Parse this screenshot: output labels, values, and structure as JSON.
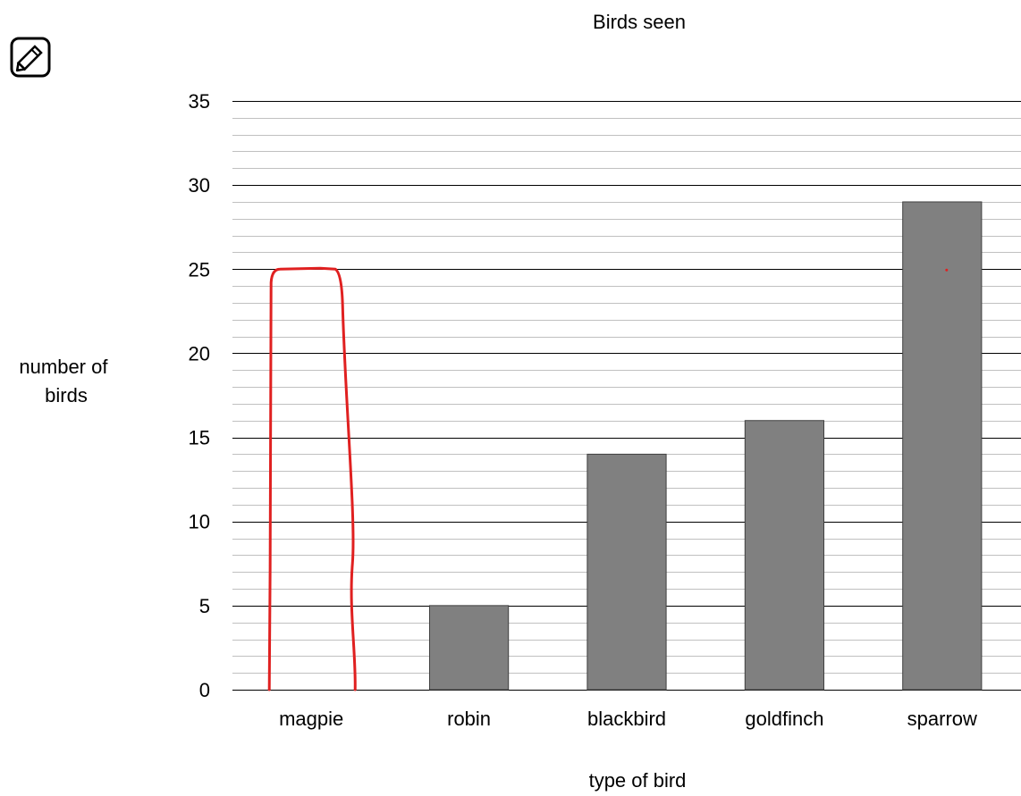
{
  "toolbar": {
    "edit_icon": "pencil-icon"
  },
  "chart_data": {
    "type": "bar",
    "title": "Birds seen",
    "xlabel": "type of bird",
    "ylabel_lines": [
      "number of",
      "birds"
    ],
    "categories": [
      "magpie",
      "robin",
      "blackbird",
      "goldfinch",
      "sparrow"
    ],
    "values": [
      null,
      5,
      14,
      16,
      29
    ],
    "drawn_bar": {
      "category": "magpie",
      "value": 25,
      "color": "#e02020"
    },
    "ylim": [
      0,
      35
    ],
    "yticks": [
      0,
      5,
      10,
      15,
      20,
      25,
      30,
      35
    ],
    "major_step": 5,
    "minor_step": 1,
    "grid": true,
    "bar_color": "#808080",
    "colors": {
      "major_grid": "#000000",
      "minor_grid": "#c0c0c0",
      "annotation": "#e02020"
    }
  }
}
